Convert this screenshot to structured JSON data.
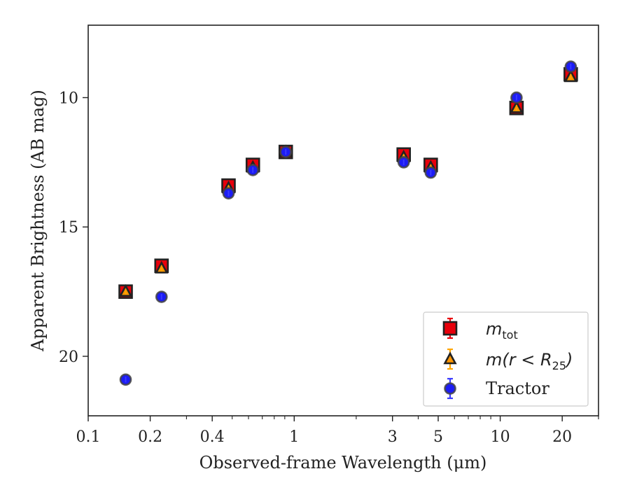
{
  "chart_data": {
    "type": "scatter",
    "xscale": "log",
    "xlim": [
      0.1,
      30
    ],
    "ylim": [
      22.3,
      7.2
    ],
    "yaxis_inverted": true,
    "xlabel": "Observed-frame Wavelength (μm)",
    "ylabel": "Apparent Brightness (AB mag)",
    "x_ticks": [
      0.1,
      0.2,
      0.4,
      1,
      3,
      5,
      10,
      20
    ],
    "x_tick_labels": [
      "0.1",
      "0.2",
      "0.4",
      "1",
      "3",
      "5",
      "10",
      "20"
    ],
    "y_ticks": [
      10,
      15,
      20
    ],
    "y_tick_labels": [
      "10",
      "15",
      "20"
    ],
    "grid": false,
    "legend_position": "lower-right",
    "series": [
      {
        "name": "m_tot",
        "legend_main": "m",
        "legend_sub": "tot",
        "marker": "square",
        "color": "#e8000b",
        "edge_color": "#222222",
        "errorbar_color": "#e8000b",
        "x": [
          0.152,
          0.227,
          0.48,
          0.63,
          0.91,
          3.4,
          4.6,
          12,
          22
        ],
        "y": [
          17.5,
          16.5,
          13.4,
          12.6,
          12.1,
          12.2,
          12.6,
          10.4,
          9.1
        ]
      },
      {
        "name": "m(r<R25)",
        "legend_main": "m(r < R",
        "legend_sub": "25",
        "legend_after": ")",
        "marker": "triangle",
        "color": "#ff9500",
        "edge_color": "#222222",
        "errorbar_color": "#ffa500",
        "x": [
          0.152,
          0.227,
          0.48,
          0.63,
          0.91,
          3.4,
          4.6,
          12,
          22
        ],
        "y": [
          17.5,
          16.6,
          13.5,
          12.7,
          12.1,
          12.3,
          12.7,
          10.4,
          9.2
        ]
      },
      {
        "name": "Tractor",
        "marker": "circle",
        "color": "#1c1cf5",
        "edge_color": "#444444",
        "errorbar_color": "#3a3aff",
        "x": [
          0.152,
          0.227,
          0.48,
          0.63,
          0.91,
          3.4,
          4.6,
          12,
          22
        ],
        "y": [
          20.9,
          17.7,
          13.7,
          12.8,
          12.1,
          12.5,
          12.9,
          10.0,
          8.8
        ]
      }
    ]
  }
}
